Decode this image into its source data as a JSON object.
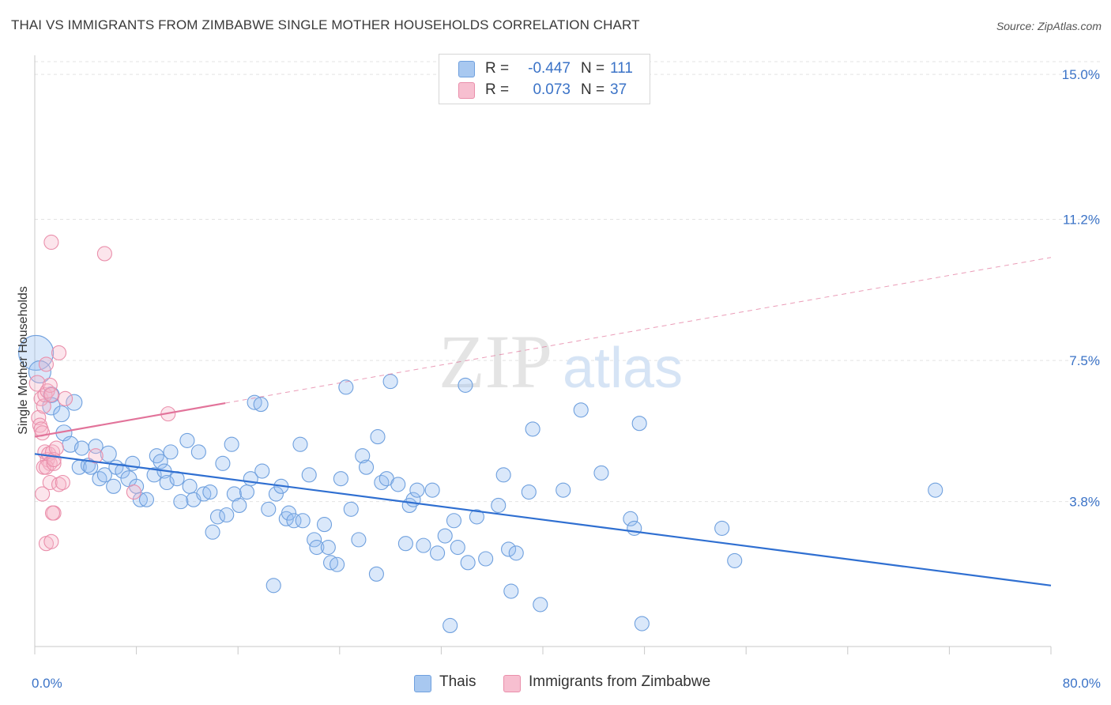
{
  "title": "THAI VS IMMIGRANTS FROM ZIMBABWE SINGLE MOTHER HOUSEHOLDS CORRELATION CHART",
  "source": "Source: ZipAtlas.com",
  "watermark": {
    "zip": "ZIP",
    "atlas": "atlas"
  },
  "legend": {
    "rows": [
      {
        "label": "R =",
        "r_value": "-0.447",
        "n_label": "N =",
        "n_value": "111",
        "color": "#a8c8f0",
        "border": "#6fa0de"
      },
      {
        "label": "R =",
        "r_value": "0.073",
        "n_label": "N =",
        "n_value": "37",
        "color": "#f7bfd0",
        "border": "#ea8fab"
      }
    ]
  },
  "bottom_legend": [
    {
      "label": "Thais",
      "color": "#a8c8f0",
      "border": "#6fa0de"
    },
    {
      "label": "Immigrants from Zimbabwe",
      "color": "#f7bfd0",
      "border": "#ea8fab"
    }
  ],
  "chart_data": {
    "type": "scatter",
    "ylabel": "Single Mother Households",
    "xlim": [
      0,
      80
    ],
    "ylim": [
      0,
      15.5
    ],
    "x_tick_labels": [
      {
        "value": 0,
        "label": "0.0%"
      },
      {
        "value": 80,
        "label": "80.0%"
      }
    ],
    "y_ticks": [
      {
        "value": 3.8,
        "label": "3.8%"
      },
      {
        "value": 7.5,
        "label": "7.5%"
      },
      {
        "value": 11.2,
        "label": "11.2%"
      },
      {
        "value": 15.0,
        "label": "15.0%"
      }
    ],
    "x_minor_ticks": [
      0,
      8,
      16,
      24,
      32,
      40,
      48,
      56,
      64,
      72,
      80
    ],
    "grid": true,
    "series": [
      {
        "name": "Thais",
        "color": "#6fa0de",
        "fill": "rgba(150,190,240,0.35)",
        "trend": {
          "x0": 0,
          "y0": 5.05,
          "x1": 80,
          "y1": 1.6,
          "color": "#2f6fd1",
          "dashed_from": null
        },
        "points": [
          [
            0.1,
            7.7,
            22
          ],
          [
            0.4,
            7.2,
            14
          ],
          [
            1.3,
            6.6,
            10
          ],
          [
            1.3,
            6.3,
            11
          ],
          [
            2.1,
            6.1,
            10
          ],
          [
            3.1,
            6.4,
            10
          ],
          [
            2.3,
            5.6,
            10
          ],
          [
            2.8,
            5.3,
            10
          ],
          [
            3.7,
            5.2,
            9
          ],
          [
            4.8,
            5.25,
            9
          ],
          [
            5.8,
            5.05,
            10
          ],
          [
            3.5,
            4.7,
            9
          ],
          [
            4.2,
            4.75,
            9
          ],
          [
            4.4,
            4.7,
            9
          ],
          [
            5.1,
            4.4,
            9
          ],
          [
            5.5,
            4.5,
            9
          ],
          [
            6.4,
            4.7,
            9
          ],
          [
            6.9,
            4.6,
            9
          ],
          [
            7.4,
            4.4,
            10
          ],
          [
            7.7,
            4.8,
            9
          ],
          [
            6.2,
            4.2,
            9
          ],
          [
            8.0,
            4.2,
            9
          ],
          [
            8.3,
            3.85,
            9
          ],
          [
            8.8,
            3.85,
            9
          ],
          [
            9.4,
            4.5,
            9
          ],
          [
            9.6,
            5.0,
            9
          ],
          [
            9.9,
            4.85,
            9
          ],
          [
            10.2,
            4.6,
            9
          ],
          [
            10.4,
            4.3,
            9
          ],
          [
            10.7,
            5.1,
            9
          ],
          [
            11.2,
            4.4,
            9
          ],
          [
            11.5,
            3.8,
            9
          ],
          [
            12.0,
            5.4,
            9
          ],
          [
            12.2,
            4.2,
            9
          ],
          [
            12.5,
            3.85,
            9
          ],
          [
            12.9,
            5.1,
            9
          ],
          [
            13.3,
            4.0,
            9
          ],
          [
            13.8,
            4.05,
            9
          ],
          [
            14.0,
            3.0,
            9
          ],
          [
            14.4,
            3.4,
            9
          ],
          [
            14.8,
            4.8,
            9
          ],
          [
            15.1,
            3.45,
            9
          ],
          [
            15.5,
            5.3,
            9
          ],
          [
            15.7,
            4.0,
            9
          ],
          [
            16.1,
            3.7,
            9
          ],
          [
            16.7,
            4.05,
            9
          ],
          [
            17.0,
            4.4,
            9
          ],
          [
            17.3,
            6.4,
            9
          ],
          [
            17.8,
            6.35,
            9
          ],
          [
            17.9,
            4.6,
            9
          ],
          [
            18.4,
            3.6,
            9
          ],
          [
            18.8,
            1.6,
            9
          ],
          [
            19.0,
            4.0,
            9
          ],
          [
            19.4,
            4.2,
            9
          ],
          [
            19.8,
            3.35,
            9
          ],
          [
            20.0,
            3.5,
            9
          ],
          [
            20.4,
            3.3,
            9
          ],
          [
            20.9,
            5.3,
            9
          ],
          [
            21.1,
            3.3,
            9
          ],
          [
            21.6,
            4.5,
            9
          ],
          [
            22.0,
            2.8,
            9
          ],
          [
            22.2,
            2.6,
            9
          ],
          [
            22.8,
            3.2,
            9
          ],
          [
            23.1,
            2.6,
            9
          ],
          [
            23.3,
            2.2,
            9
          ],
          [
            23.8,
            2.15,
            9
          ],
          [
            24.1,
            4.4,
            9
          ],
          [
            24.5,
            6.8,
            9
          ],
          [
            24.9,
            3.6,
            9
          ],
          [
            25.5,
            2.8,
            9
          ],
          [
            25.8,
            5.0,
            9
          ],
          [
            26.1,
            4.7,
            9
          ],
          [
            26.9,
            1.9,
            9
          ],
          [
            27.0,
            5.5,
            9
          ],
          [
            27.3,
            4.3,
            9
          ],
          [
            27.7,
            4.4,
            9
          ],
          [
            28.0,
            6.95,
            9
          ],
          [
            28.6,
            4.25,
            9
          ],
          [
            29.2,
            2.7,
            9
          ],
          [
            29.5,
            3.7,
            9
          ],
          [
            29.8,
            3.85,
            9
          ],
          [
            30.1,
            4.1,
            9
          ],
          [
            30.6,
            2.65,
            9
          ],
          [
            31.3,
            4.1,
            9
          ],
          [
            31.7,
            2.45,
            9
          ],
          [
            32.3,
            2.9,
            9
          ],
          [
            32.7,
            0.55,
            9
          ],
          [
            33.0,
            3.3,
            9
          ],
          [
            33.3,
            2.6,
            9
          ],
          [
            33.9,
            6.85,
            9
          ],
          [
            34.1,
            2.2,
            9
          ],
          [
            34.8,
            3.4,
            9
          ],
          [
            35.5,
            2.3,
            9
          ],
          [
            36.5,
            3.7,
            9
          ],
          [
            36.9,
            4.5,
            9
          ],
          [
            37.3,
            2.55,
            9
          ],
          [
            37.5,
            1.45,
            9
          ],
          [
            37.9,
            2.45,
            9
          ],
          [
            38.9,
            4.05,
            9
          ],
          [
            39.2,
            5.7,
            9
          ],
          [
            39.8,
            1.1,
            9
          ],
          [
            41.6,
            4.1,
            9
          ],
          [
            43.0,
            6.2,
            9
          ],
          [
            44.6,
            4.55,
            9
          ],
          [
            46.9,
            3.35,
            9
          ],
          [
            47.2,
            3.1,
            9
          ],
          [
            47.6,
            5.85,
            9
          ],
          [
            47.8,
            0.6,
            9
          ],
          [
            54.1,
            3.1,
            9
          ],
          [
            55.1,
            2.25,
            9
          ],
          [
            70.9,
            4.1,
            9
          ]
        ]
      },
      {
        "name": "Immigrants from Zimbabwe",
        "color": "#ea8fab",
        "fill": "rgba(245,180,200,0.35)",
        "trend": {
          "x0": 0,
          "y0": 5.5,
          "x1": 80,
          "y1": 10.2,
          "color": "#e2739a",
          "solid_until": 15
        },
        "points": [
          [
            0.2,
            6.9,
            10
          ],
          [
            0.3,
            6.0,
            9
          ],
          [
            0.4,
            5.8,
            9
          ],
          [
            0.5,
            5.7,
            9
          ],
          [
            0.6,
            5.6,
            9
          ],
          [
            0.5,
            6.5,
            9
          ],
          [
            0.7,
            6.3,
            9
          ],
          [
            0.8,
            6.6,
            9
          ],
          [
            0.9,
            7.4,
            9
          ],
          [
            1.0,
            6.7,
            9
          ],
          [
            1.2,
            6.85,
            9
          ],
          [
            1.3,
            6.6,
            9
          ],
          [
            0.8,
            5.1,
            9
          ],
          [
            1.0,
            4.9,
            9
          ],
          [
            1.1,
            5.05,
            9
          ],
          [
            1.2,
            4.8,
            9
          ],
          [
            1.4,
            5.1,
            9
          ],
          [
            0.7,
            4.7,
            9
          ],
          [
            0.9,
            4.7,
            9
          ],
          [
            1.5,
            4.8,
            9
          ],
          [
            0.6,
            4.0,
            9
          ],
          [
            1.2,
            4.3,
            9
          ],
          [
            1.5,
            4.9,
            9
          ],
          [
            1.7,
            5.2,
            9
          ],
          [
            1.9,
            4.25,
            9
          ],
          [
            2.2,
            4.3,
            9
          ],
          [
            2.4,
            6.5,
            9
          ],
          [
            1.5,
            3.5,
            9
          ],
          [
            1.4,
            3.5,
            9
          ],
          [
            0.9,
            2.7,
            9
          ],
          [
            1.3,
            2.75,
            9
          ],
          [
            1.9,
            7.7,
            9
          ],
          [
            1.3,
            10.6,
            9
          ],
          [
            5.5,
            10.3,
            9
          ],
          [
            4.8,
            5.0,
            9
          ],
          [
            7.8,
            4.05,
            9
          ],
          [
            10.5,
            6.1,
            9
          ]
        ]
      }
    ]
  }
}
